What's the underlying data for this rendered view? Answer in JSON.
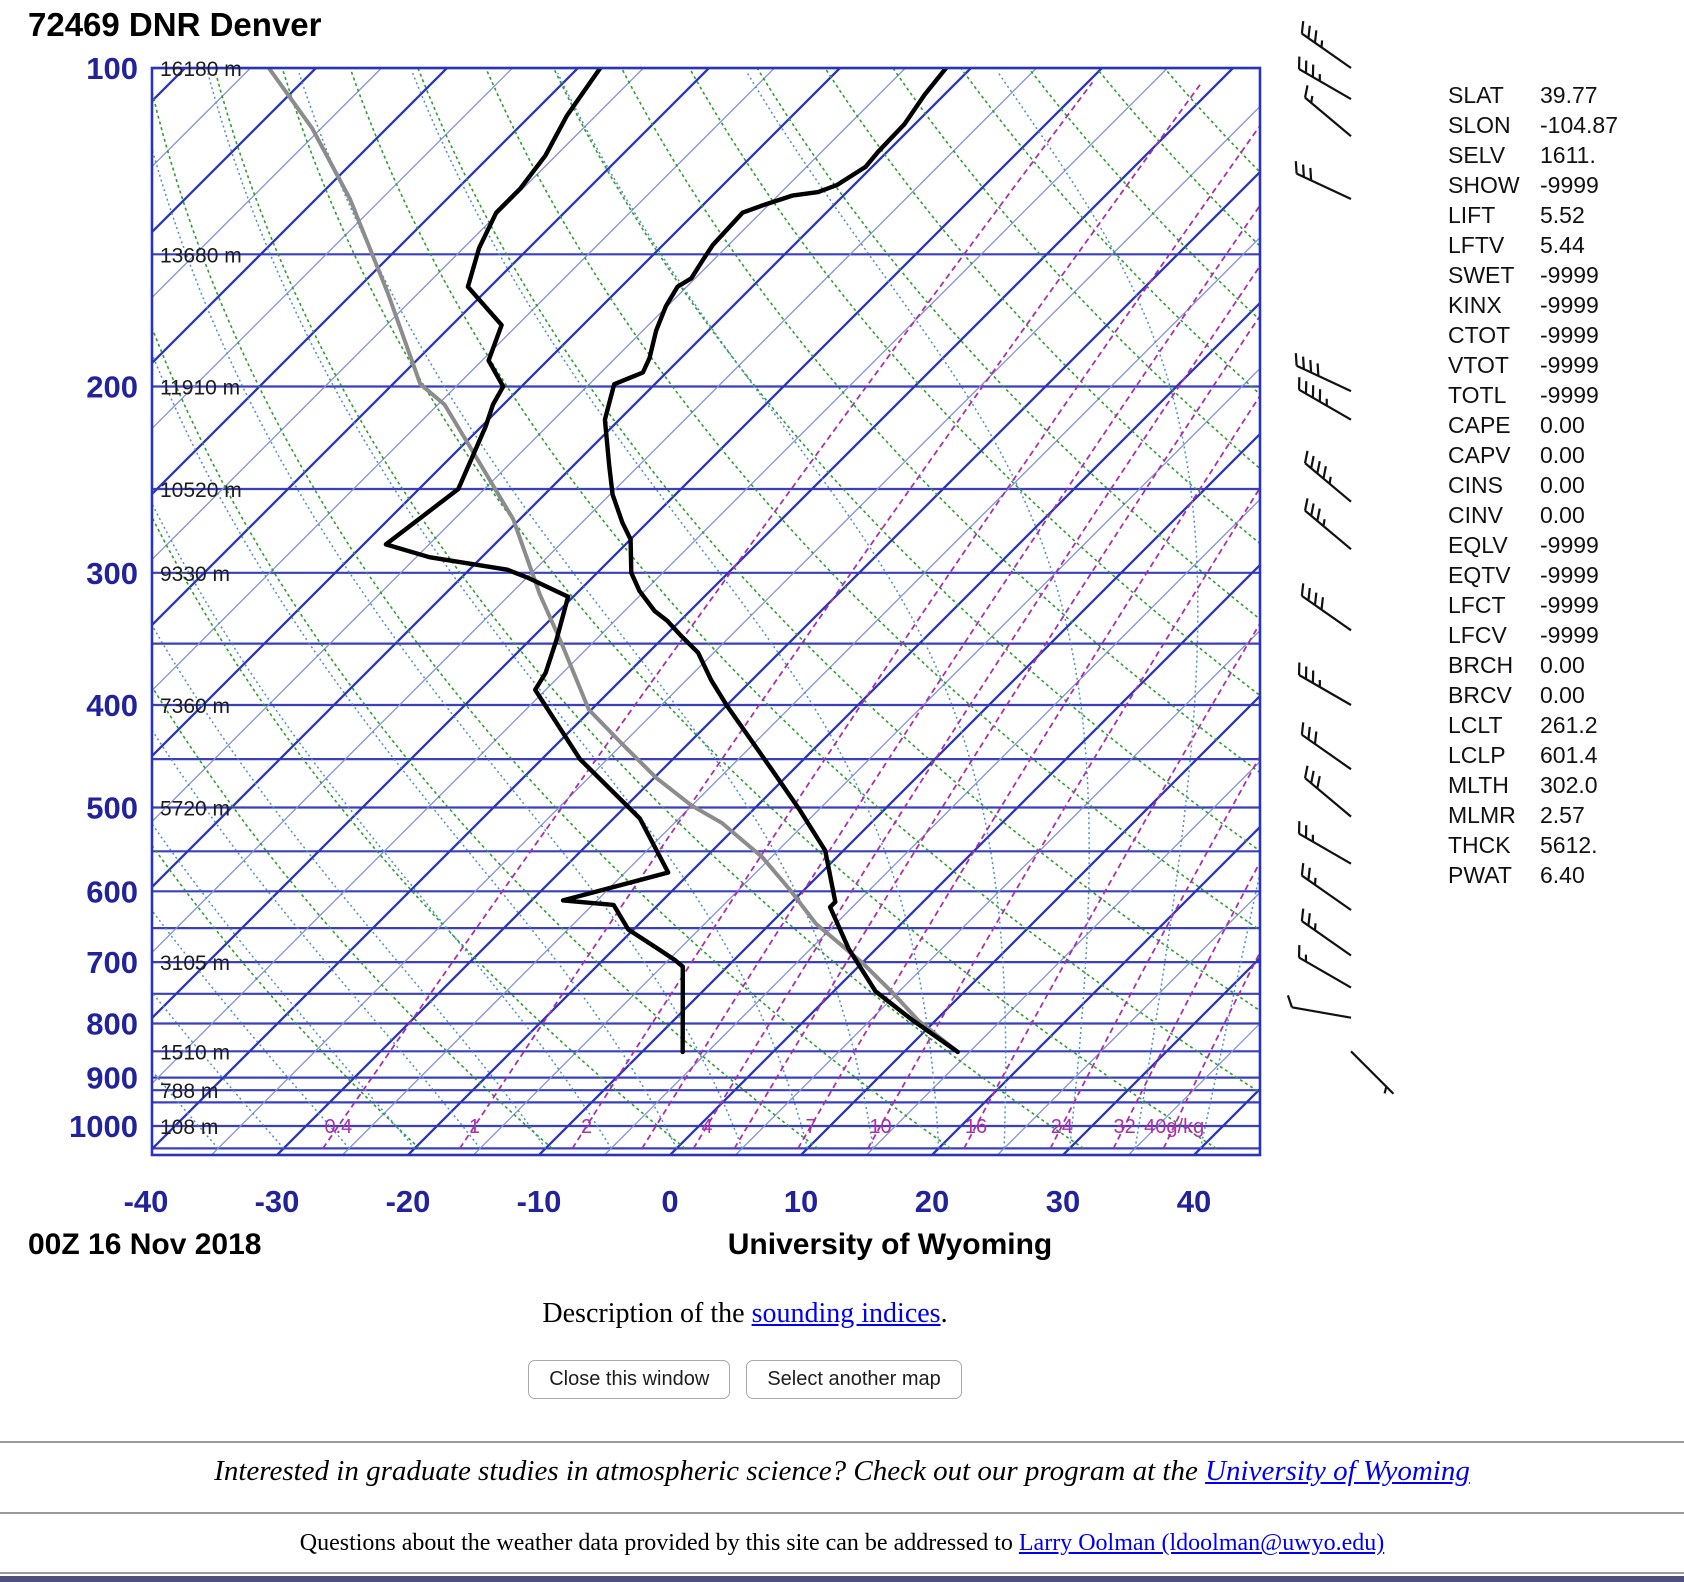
{
  "title": "72469 DNR Denver",
  "chart_data": {
    "type": "skewt-log-p-sounding",
    "title": "72469 DNR Denver",
    "datetime_label": "00Z 16 Nov 2018",
    "credit_label": "University of Wyoming",
    "pressure_ticks": [
      100,
      200,
      300,
      400,
      500,
      600,
      700,
      800,
      900,
      1000
    ],
    "isobars": [
      100,
      150,
      200,
      250,
      300,
      350,
      400,
      450,
      500,
      550,
      600,
      650,
      700,
      750,
      800,
      850,
      900,
      925,
      950,
      1000,
      1050
    ],
    "temp_ticks": [
      -40,
      -30,
      -20,
      -10,
      0,
      10,
      20,
      30,
      40
    ],
    "heights": [
      {
        "p": 100,
        "label": "16180 m"
      },
      {
        "p": 150,
        "label": "13680 m"
      },
      {
        "p": 200,
        "label": "11910 m"
      },
      {
        "p": 250,
        "label": "10520 m"
      },
      {
        "p": 300,
        "label": "9330 m"
      },
      {
        "p": 400,
        "label": "7360 m"
      },
      {
        "p": 500,
        "label": "5720 m"
      },
      {
        "p": 700,
        "label": "3105 m"
      },
      {
        "p": 850,
        "label": "1510 m"
      },
      {
        "p": 925,
        "label": "788 m"
      },
      {
        "p": 1000,
        "label": "108 m"
      }
    ],
    "mixing_ratios": [
      0.4,
      1,
      2,
      3,
      4,
      5,
      7,
      10,
      16,
      24,
      32,
      40
    ],
    "mixing_ratio_labels": [
      {
        "value": 0.4,
        "label": "0.4"
      },
      {
        "value": 1,
        "label": "1"
      },
      {
        "value": 2,
        "label": "2"
      },
      {
        "value": 4,
        "label": "4"
      },
      {
        "value": 7,
        "label": "7"
      },
      {
        "value": 10,
        "label": "10"
      },
      {
        "value": 16,
        "label": "16"
      },
      {
        "value": 24,
        "label": "24"
      },
      {
        "value": 32,
        "label": "32"
      },
      {
        "value": 40,
        "label": "40g/kg"
      }
    ],
    "isotherms": {
      "min": -130,
      "max": 45,
      "step": 5,
      "bold_every": 10
    },
    "dry_adiabats": {
      "theta_min": 250,
      "theta_max": 440,
      "step": 10
    },
    "moist_adiabats": {
      "t_start_min": -40,
      "t_start_max": 40,
      "step": 5
    },
    "series": {
      "dewpoint": [
        [
          100,
          -88.3
        ],
        [
          111,
          -87.2
        ],
        [
          121,
          -85.8
        ],
        [
          130,
          -85.2
        ],
        [
          137,
          -85.2
        ],
        [
          148,
          -83.8
        ],
        [
          161,
          -81.7
        ],
        [
          175,
          -76.2
        ],
        [
          189,
          -74.5
        ],
        [
          200,
          -71.4
        ],
        [
          208,
          -70.8
        ],
        [
          218,
          -69.7
        ],
        [
          250,
          -67.0
        ],
        [
          282,
          -68.3
        ],
        [
          290,
          -64.0
        ],
        [
          298,
          -57.1
        ],
        [
          303,
          -55.0
        ],
        [
          316,
          -50.4
        ],
        [
          347,
          -48.0
        ],
        [
          373,
          -46.3
        ],
        [
          387,
          -45.8
        ],
        [
          450,
          -37.1
        ],
        [
          512,
          -28.0
        ],
        [
          576,
          -21.7
        ],
        [
          612,
          -27.6
        ],
        [
          618,
          -23.4
        ],
        [
          652,
          -20.4
        ],
        [
          682,
          -16.4
        ],
        [
          697,
          -14.5
        ],
        [
          707,
          -13.4
        ],
        [
          851,
          -6.9
        ]
      ],
      "temperature": [
        [
          100,
          -61.9
        ],
        [
          106,
          -61.5
        ],
        [
          113,
          -60.8
        ],
        [
          120,
          -60.7
        ],
        [
          124,
          -60.5
        ],
        [
          129,
          -61.3
        ],
        [
          131,
          -62.2
        ],
        [
          132,
          -63.9
        ],
        [
          135,
          -65.5
        ],
        [
          137,
          -66.4
        ],
        [
          147,
          -66.2
        ],
        [
          152,
          -65.8
        ],
        [
          158,
          -65.3
        ],
        [
          161,
          -65.7
        ],
        [
          168,
          -65.1
        ],
        [
          177,
          -64.0
        ],
        [
          188,
          -62.4
        ],
        [
          194,
          -61.8
        ],
        [
          199,
          -63.1
        ],
        [
          215,
          -61.1
        ],
        [
          238,
          -57.2
        ],
        [
          253,
          -54.8
        ],
        [
          269,
          -51.9
        ],
        [
          279,
          -50.0
        ],
        [
          300,
          -47.4
        ],
        [
          312,
          -45.4
        ],
        [
          326,
          -42.7
        ],
        [
          333,
          -41.0
        ],
        [
          344,
          -38.8
        ],
        [
          357,
          -36.2
        ],
        [
          379,
          -33.1
        ],
        [
          401,
          -29.9
        ],
        [
          460,
          -21.7
        ],
        [
          503,
          -16.4
        ],
        [
          549,
          -11.4
        ],
        [
          614,
          -6.7
        ],
        [
          621,
          -6.7
        ],
        [
          680,
          -2.1
        ],
        [
          746,
          3.2
        ],
        [
          795,
          8.3
        ],
        [
          851,
          14.1
        ]
      ],
      "parcel": [
        [
          100,
          -113.6
        ],
        [
          114,
          -105.7
        ],
        [
          133,
          -97.4
        ],
        [
          163,
          -87.4
        ],
        [
          199,
          -77.9
        ],
        [
          208,
          -74.5
        ],
        [
          229,
          -69.1
        ],
        [
          267,
          -60.5
        ],
        [
          314,
          -52.8
        ],
        [
          350,
          -47.3
        ],
        [
          404,
          -40.2
        ],
        [
          435,
          -35.1
        ],
        [
          469,
          -29.8
        ],
        [
          498,
          -25.0
        ],
        [
          517,
          -21.4
        ],
        [
          557,
          -15.7
        ],
        [
          597,
          -11.2
        ],
        [
          644,
          -6.5
        ],
        [
          700,
          -0.1
        ],
        [
          746,
          4.4
        ],
        [
          795,
          8.7
        ],
        [
          851,
          14.1
        ]
      ]
    },
    "wind_barbs": [
      {
        "p": 100,
        "dir": 305,
        "spd": 35
      },
      {
        "p": 107,
        "dir": 300,
        "spd": 35
      },
      {
        "p": 116,
        "dir": 310,
        "spd": 15
      },
      {
        "p": 133,
        "dir": 295,
        "spd": 30
      },
      {
        "p": 202,
        "dir": 295,
        "spd": 40
      },
      {
        "p": 215,
        "dir": 300,
        "spd": 45
      },
      {
        "p": 257,
        "dir": 310,
        "spd": 45
      },
      {
        "p": 285,
        "dir": 310,
        "spd": 35
      },
      {
        "p": 340,
        "dir": 305,
        "spd": 40
      },
      {
        "p": 400,
        "dir": 300,
        "spd": 35
      },
      {
        "p": 460,
        "dir": 305,
        "spd": 30
      },
      {
        "p": 510,
        "dir": 310,
        "spd": 30
      },
      {
        "p": 565,
        "dir": 300,
        "spd": 25
      },
      {
        "p": 625,
        "dir": 305,
        "spd": 25
      },
      {
        "p": 690,
        "dir": 305,
        "spd": 25
      },
      {
        "p": 740,
        "dir": 300,
        "spd": 15
      },
      {
        "p": 790,
        "dir": 280,
        "spd": 10
      },
      {
        "p": 850,
        "dir": 135,
        "spd": 5
      }
    ],
    "colors": {
      "axis_label": "#22229a",
      "isobar": "#3a3fbe",
      "isotherm_bold": "#2a35b5",
      "isotherm_thin": "#8090d8",
      "dry_adiabat": "#2d9e2d",
      "moist_adiabat": "#4d8fc4",
      "mixing_ratio": "#aa30aa",
      "trace": "#000000",
      "parcel": "#8c8c8c",
      "barb": "#111111"
    }
  },
  "indices": [
    {
      "label": "SLAT",
      "value": "39.77"
    },
    {
      "label": "SLON",
      "value": "-104.87"
    },
    {
      "label": "SELV",
      "value": "1611."
    },
    {
      "label": "SHOW",
      "value": "-9999"
    },
    {
      "label": "LIFT",
      "value": "5.52"
    },
    {
      "label": "LFTV",
      "value": "5.44"
    },
    {
      "label": "SWET",
      "value": "-9999"
    },
    {
      "label": "KINX",
      "value": "-9999"
    },
    {
      "label": "CTOT",
      "value": "-9999"
    },
    {
      "label": "VTOT",
      "value": "-9999"
    },
    {
      "label": "TOTL",
      "value": "-9999"
    },
    {
      "label": "CAPE",
      "value": "0.00"
    },
    {
      "label": "CAPV",
      "value": "0.00"
    },
    {
      "label": "CINS",
      "value": "0.00"
    },
    {
      "label": "CINV",
      "value": "0.00"
    },
    {
      "label": "EQLV",
      "value": "-9999"
    },
    {
      "label": "EQTV",
      "value": "-9999"
    },
    {
      "label": "LFCT",
      "value": "-9999"
    },
    {
      "label": "LFCV",
      "value": "-9999"
    },
    {
      "label": "BRCH",
      "value": "0.00"
    },
    {
      "label": "BRCV",
      "value": "0.00"
    },
    {
      "label": "LCLT",
      "value": "261.2"
    },
    {
      "label": "LCLP",
      "value": "601.4"
    },
    {
      "label": "MLTH",
      "value": "302.0"
    },
    {
      "label": "MLMR",
      "value": "2.57"
    },
    {
      "label": "THCK",
      "value": "5612."
    },
    {
      "label": "PWAT",
      "value": "6.40"
    }
  ],
  "description": {
    "prefix": "Description of the ",
    "link": "sounding indices",
    "suffix": "."
  },
  "buttons": {
    "close": "Close this window",
    "select": "Select another map"
  },
  "footer": {
    "promo_prefix": "Interested in graduate studies in atmospheric science? Check out our program at the ",
    "promo_link": "University of Wyoming",
    "questions_prefix": "Questions about the weather data provided by this site can be addressed to ",
    "questions_link": "Larry Oolman (ldoolman@uwyo.edu)"
  }
}
